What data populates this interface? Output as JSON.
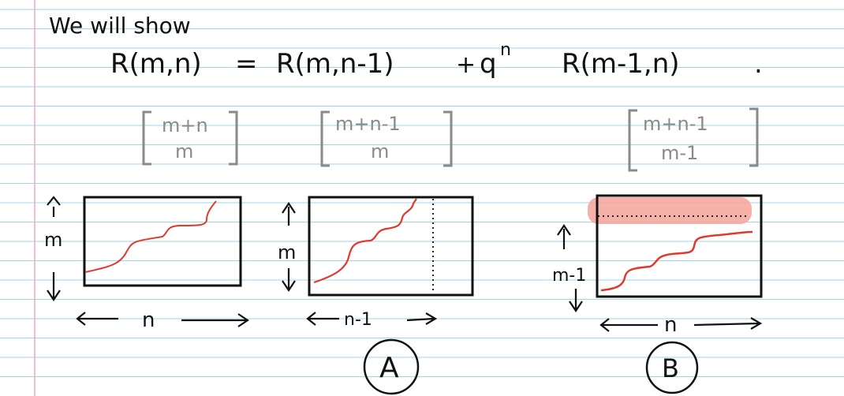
{
  "intro_text": "We will show",
  "equation": {
    "lhs": "R(m,n)",
    "equals": "=",
    "term1": "R(m,n-1)",
    "plus": "+",
    "q": "q",
    "exponent": "n",
    "term2": "R(m-1,n)",
    "period": "."
  },
  "binomials": [
    {
      "top": "m+n",
      "bottom": "m"
    },
    {
      "top": "m+n-1",
      "bottom": "m"
    },
    {
      "top": "m+n-1",
      "bottom": "m-1"
    }
  ],
  "diagrams": [
    {
      "height_label": "m",
      "width_label": "n",
      "circle_label": ""
    },
    {
      "height_label": "m",
      "width_label": "n-1",
      "circle_label": "A"
    },
    {
      "height_label": "m-1",
      "width_label": "n",
      "circle_label": "B"
    }
  ],
  "colors": {
    "ruled_line": "#9fd6e4",
    "margin_line": "#f2a6c4",
    "ink": "#111111",
    "bracket_gray": "#8a8a8a",
    "path_red": "#e0392b",
    "highlight": "#f4a39a"
  }
}
